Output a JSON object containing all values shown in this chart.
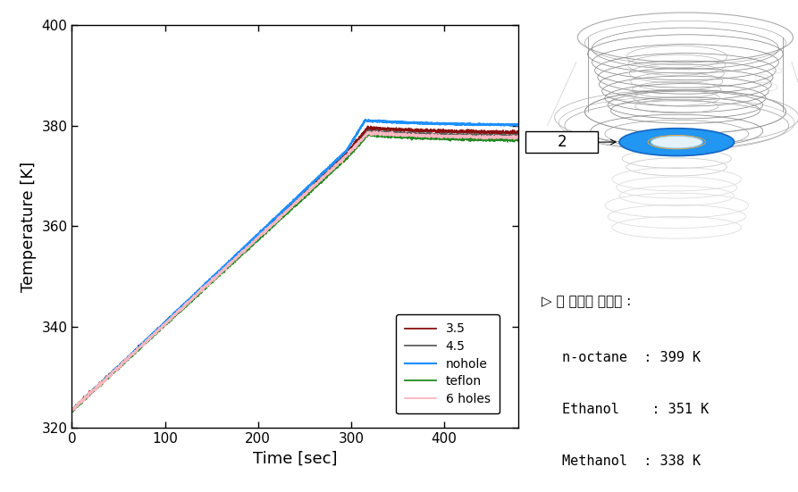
{
  "xlabel": "Time [sec]",
  "ylabel": "Temperature [K]",
  "xlim": [
    0,
    480
  ],
  "ylim": [
    320,
    400
  ],
  "xticks": [
    0,
    100,
    200,
    300,
    400
  ],
  "yticks": [
    320,
    340,
    360,
    380,
    400
  ],
  "series": {
    "3.5": {
      "color": "#8B1010",
      "lw": 1.3
    },
    "4.5": {
      "color": "#606060",
      "lw": 1.3
    },
    "nohole": {
      "color": "#1E90FF",
      "lw": 1.6
    },
    "teflon": {
      "color": "#228B22",
      "lw": 1.3
    },
    "6 holes": {
      "color": "#FFB6C1",
      "lw": 1.3
    }
  },
  "annotation_title": "▷ 각 연료의 끓는점 :",
  "annotation_lines": [
    "n-octane  : 399 K",
    "Ethanol    : 351 K",
    "Methanol  : 338 K"
  ],
  "background_color": "#ffffff"
}
